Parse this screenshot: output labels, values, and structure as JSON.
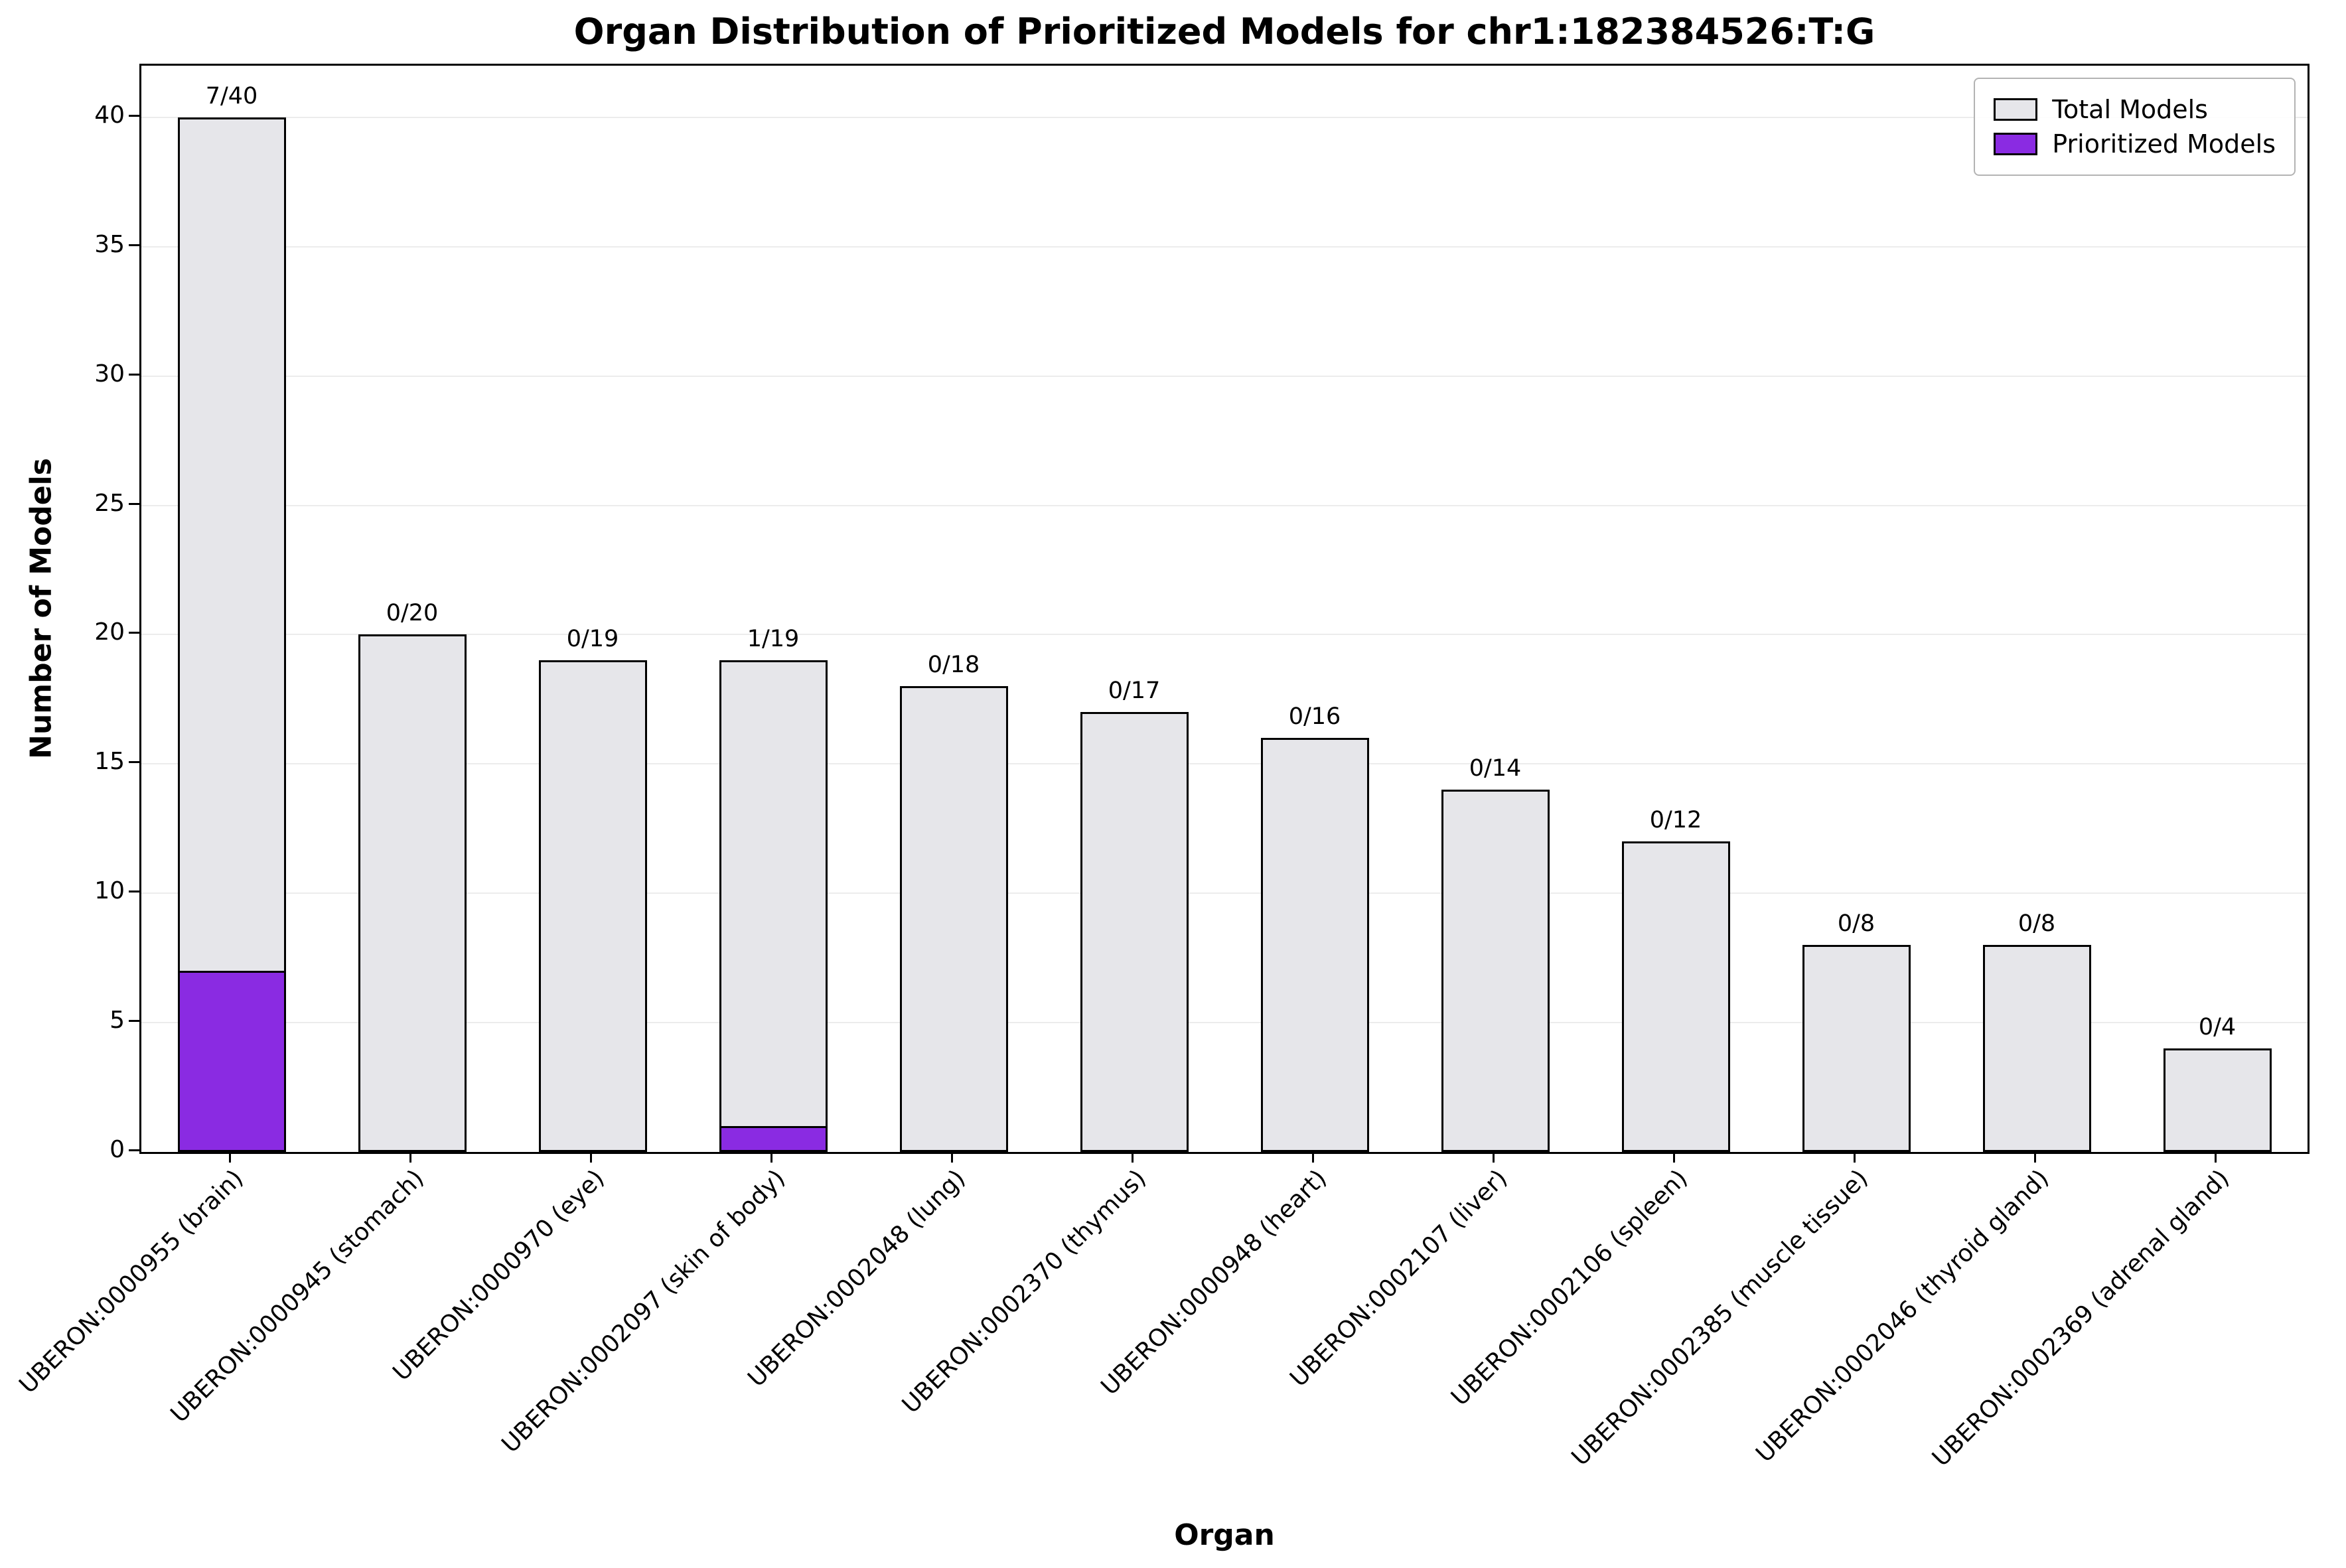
{
  "chart_data": {
    "type": "bar",
    "title": "Organ Distribution of Prioritized Models for chr1:182384526:T:G",
    "xlabel": "Organ",
    "ylabel": "Number of Models",
    "ylim": [
      0,
      42
    ],
    "yticks": [
      0,
      5,
      10,
      15,
      20,
      25,
      30,
      35,
      40
    ],
    "grid": true,
    "legend_position": "upper right",
    "categories": [
      "UBERON:0000955 (brain)",
      "UBERON:0000945 (stomach)",
      "UBERON:0000970 (eye)",
      "UBERON:0002097 (skin of body)",
      "UBERON:0002048 (lung)",
      "UBERON:0002370 (thymus)",
      "UBERON:0000948 (heart)",
      "UBERON:0002107 (liver)",
      "UBERON:0002106 (spleen)",
      "UBERON:0002385 (muscle tissue)",
      "UBERON:0002046 (thyroid gland)",
      "UBERON:0002369 (adrenal gland)"
    ],
    "series": [
      {
        "name": "Total Models",
        "color": "#e6e6ea",
        "values": [
          40,
          20,
          19,
          19,
          18,
          17,
          16,
          14,
          12,
          8,
          8,
          4
        ]
      },
      {
        "name": "Prioritized Models",
        "color": "#8a2be2",
        "values": [
          7,
          0,
          0,
          1,
          0,
          0,
          0,
          0,
          0,
          0,
          0,
          0
        ]
      }
    ],
    "annotations": [
      "7/40",
      "0/20",
      "0/19",
      "1/19",
      "0/18",
      "0/17",
      "0/16",
      "0/14",
      "0/12",
      "0/8",
      "0/8",
      "0/4"
    ],
    "edge_color": "#000000"
  }
}
